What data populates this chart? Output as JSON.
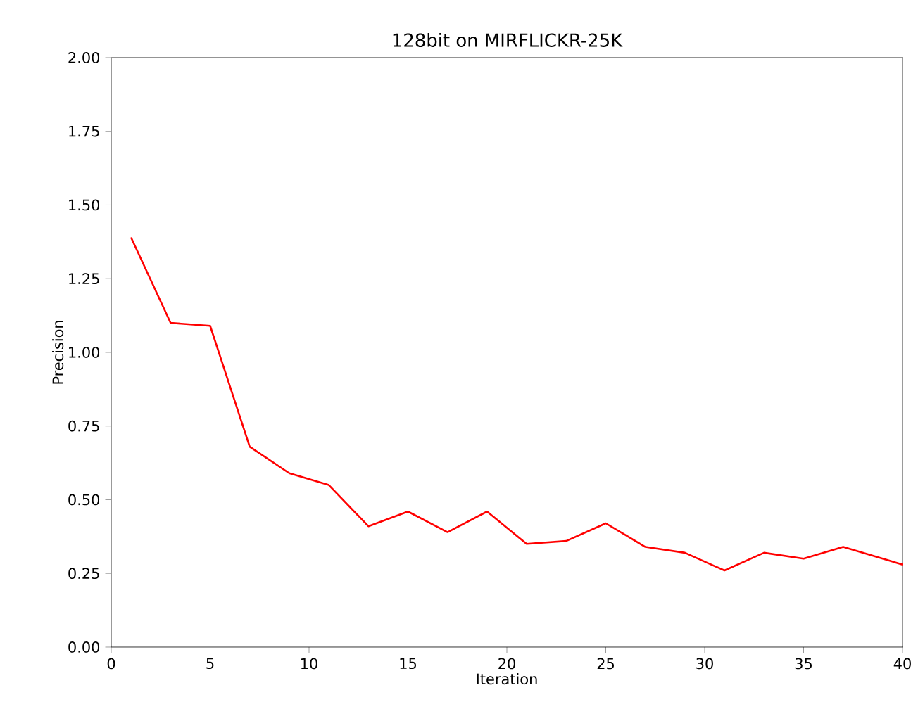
{
  "chart_data": {
    "type": "line",
    "title": "128bit on MIRFLICKR-25K",
    "xlabel": "Iteration",
    "ylabel": "Precision",
    "x": [
      1,
      3,
      5,
      7,
      9,
      11,
      13,
      15,
      17,
      19,
      21,
      23,
      25,
      27,
      29,
      31,
      33,
      35,
      37,
      39,
      40
    ],
    "series": [
      {
        "color": "#ff0000",
        "values": [
          1.39,
          1.1,
          1.09,
          0.68,
          0.59,
          0.55,
          0.41,
          0.46,
          0.39,
          0.46,
          0.35,
          0.36,
          0.42,
          0.34,
          0.32,
          0.26,
          0.32,
          0.3,
          0.34,
          0.3,
          0.28
        ]
      }
    ],
    "xlim": [
      0,
      40
    ],
    "ylim": [
      0,
      2
    ],
    "xticks": [
      0,
      5,
      10,
      15,
      20,
      25,
      30,
      35,
      40
    ],
    "yticks": [
      {
        "value": 0,
        "label": "0.00"
      },
      {
        "value": 0.25,
        "label": "0.25"
      },
      {
        "value": 0.5,
        "label": "0.50"
      },
      {
        "value": 0.75,
        "label": "0.75"
      },
      {
        "value": 1,
        "label": "1.00"
      },
      {
        "value": 1.25,
        "label": "1.25"
      },
      {
        "value": 1.5,
        "label": "1.50"
      },
      {
        "value": 1.75,
        "label": "1.75"
      },
      {
        "value": 2,
        "label": "2.00"
      }
    ],
    "grid": false
  }
}
